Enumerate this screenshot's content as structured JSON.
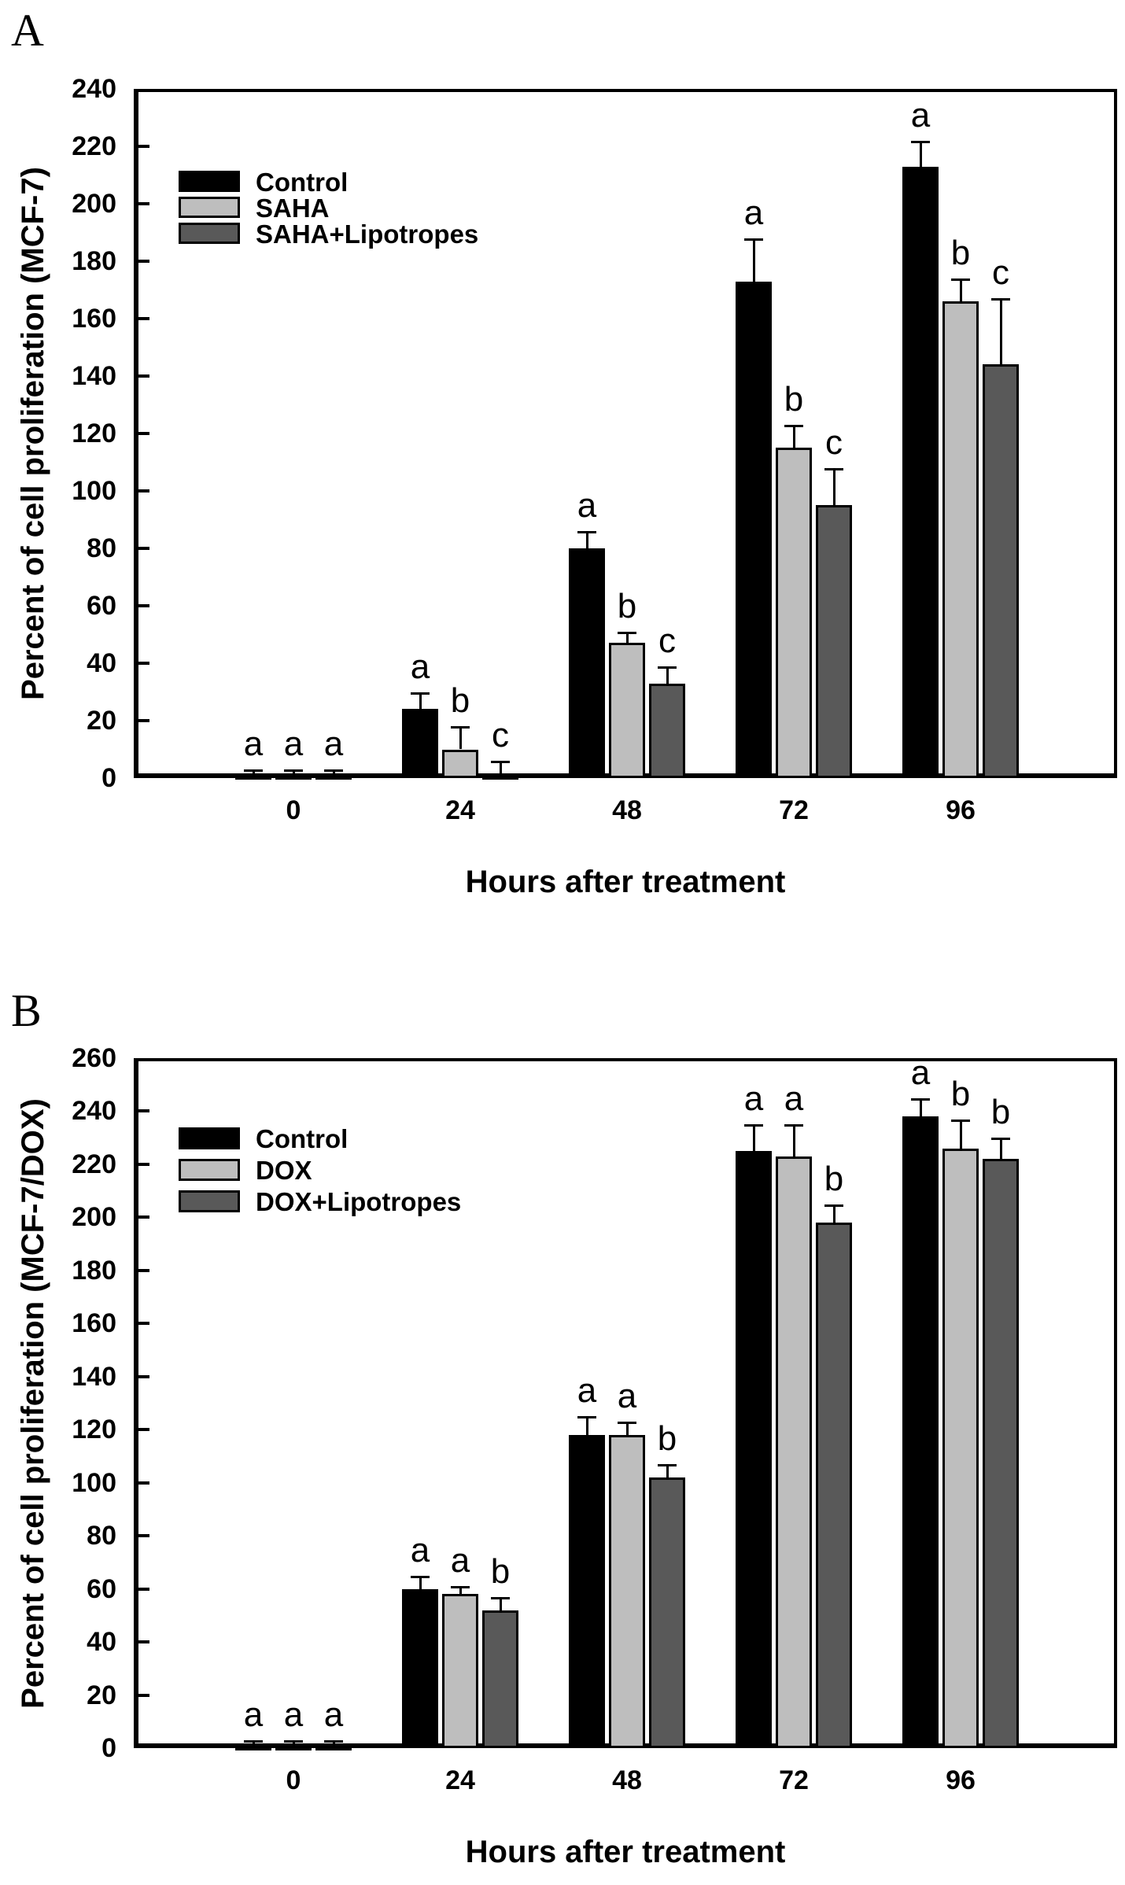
{
  "figure": {
    "background": "#ffffff",
    "panels": [
      "A",
      "B"
    ]
  },
  "chart_data": [
    {
      "type": "bar",
      "panel_label": "A",
      "title": "",
      "xlabel": "Hours after treatment",
      "ylabel": "Percent of cell proliferation (MCF-7)",
      "ylim": [
        0,
        240
      ],
      "ytick_step": 20,
      "grid": false,
      "legend_position": "upper-left-inside",
      "categories": [
        "0",
        "24",
        "48",
        "72",
        "96"
      ],
      "series": [
        {
          "name": "Control",
          "color": "#000000",
          "values": [
            1,
            24,
            80,
            173,
            213
          ],
          "errors": [
            2,
            6,
            6,
            15,
            9
          ],
          "sig": [
            "a",
            "a",
            "a",
            "a",
            "a"
          ]
        },
        {
          "name": "SAHA",
          "color": "#bebebe",
          "values": [
            1,
            10,
            47,
            115,
            166
          ],
          "errors": [
            2,
            8,
            4,
            8,
            8
          ],
          "sig": [
            "a",
            "b",
            "b",
            "b",
            "b"
          ]
        },
        {
          "name": "SAHA+Lipotropes",
          "color": "#595959",
          "values": [
            1,
            1,
            33,
            95,
            144
          ],
          "errors": [
            2,
            5,
            6,
            13,
            23
          ],
          "sig": [
            "a",
            "c",
            "c",
            "c",
            "c"
          ]
        }
      ]
    },
    {
      "type": "bar",
      "panel_label": "B",
      "title": "",
      "xlabel": "Hours after treatment",
      "ylabel": "Percent of cell proliferation (MCF-7/DOX)",
      "ylim": [
        0,
        260
      ],
      "ytick_step": 20,
      "grid": false,
      "legend_position": "upper-left-inside",
      "categories": [
        "0",
        "24",
        "48",
        "72",
        "96"
      ],
      "series": [
        {
          "name": "Control",
          "color": "#000000",
          "values": [
            1,
            60,
            118,
            225,
            238
          ],
          "errors": [
            2,
            5,
            7,
            10,
            7
          ],
          "sig": [
            "a",
            "a",
            "a",
            "a",
            "a"
          ]
        },
        {
          "name": "DOX",
          "color": "#bebebe",
          "values": [
            1,
            58,
            118,
            223,
            226
          ],
          "errors": [
            2,
            3,
            5,
            12,
            11
          ],
          "sig": [
            "a",
            "a",
            "a",
            "a",
            "b"
          ]
        },
        {
          "name": "DOX+Lipotropes",
          "color": "#595959",
          "values": [
            1,
            52,
            102,
            198,
            222
          ],
          "errors": [
            2,
            5,
            5,
            7,
            8
          ],
          "sig": [
            "a",
            "b",
            "b",
            "b",
            "b"
          ]
        }
      ]
    }
  ]
}
